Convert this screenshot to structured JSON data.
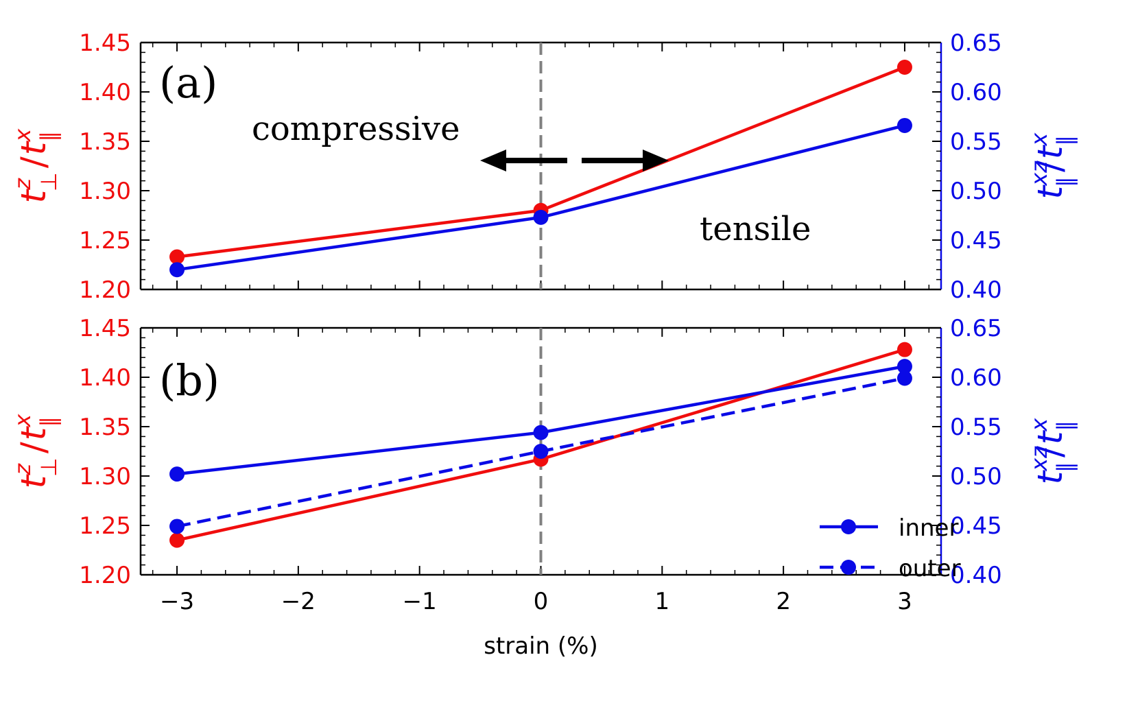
{
  "colors": {
    "left_axis": "#f00d0d",
    "right_axis": "#0a0ae6",
    "frame": "#000000",
    "zero_line": "#808080"
  },
  "xlabel": "strain (%)",
  "x_ticks": [
    "−3",
    "−2",
    "−1",
    "0",
    "1",
    "2",
    "3"
  ],
  "arrow_icons": {
    "left": "arrow-left-icon",
    "right": "arrow-right-icon"
  },
  "chart_data": [
    {
      "type": "line",
      "panel": "(a)",
      "x": [
        -3,
        0,
        3
      ],
      "xlim": [
        -3.3,
        3.3
      ],
      "ylim_left": [
        1.2,
        1.45
      ],
      "ylim_right": [
        0.4,
        0.65
      ],
      "left_ticks": [
        "1.20",
        "1.25",
        "1.30",
        "1.35",
        "1.40",
        "1.45"
      ],
      "right_ticks": [
        "0.40",
        "0.45",
        "0.50",
        "0.55",
        "0.60",
        "0.65"
      ],
      "ylabel_left": {
        "base": "t",
        "sup": "z",
        "sub": "⊥",
        "sep": "/",
        "base2": "t",
        "sup2": "x",
        "sub2": "∥"
      },
      "ylabel_right": {
        "base": "t",
        "sup": "xz",
        "sub": "∥",
        "sep": "/",
        "base2": "t",
        "sup2": "x",
        "sub2": "∥"
      },
      "annotations": [
        "compressive",
        "tensile"
      ],
      "series": [
        {
          "name": "t_perp^z / t_par^x",
          "axis": "left",
          "style": "solid",
          "values": [
            1.233,
            1.28,
            1.425
          ]
        },
        {
          "name": "t_par^xz / t_par^x",
          "axis": "right",
          "style": "solid",
          "values": [
            0.42,
            0.473,
            0.566
          ]
        }
      ]
    },
    {
      "type": "line",
      "panel": "(b)",
      "x": [
        -3,
        0,
        3
      ],
      "xlim": [
        -3.3,
        3.3
      ],
      "ylim_left": [
        1.2,
        1.45
      ],
      "ylim_right": [
        0.4,
        0.65
      ],
      "left_ticks": [
        "1.20",
        "1.25",
        "1.30",
        "1.35",
        "1.40",
        "1.45"
      ],
      "right_ticks": [
        "0.40",
        "0.45",
        "0.50",
        "0.55",
        "0.60",
        "0.65"
      ],
      "ylabel_left": {
        "base": "t",
        "sup": "z",
        "sub": "⊥",
        "sep": "/",
        "base2": "t",
        "sup2": "x",
        "sub2": "∥"
      },
      "ylabel_right": {
        "base": "t",
        "sup": "xz",
        "sub": "∥",
        "sep": "/",
        "base2": "t",
        "sup2": "x",
        "sub2": "∥"
      },
      "legend": {
        "position": "lower-right",
        "entries": [
          "inner",
          "outer"
        ]
      },
      "series": [
        {
          "name": "t_perp^z / t_par^x",
          "axis": "left",
          "style": "solid",
          "values": [
            1.235,
            1.317,
            1.428
          ]
        },
        {
          "name": "inner",
          "axis": "right",
          "style": "solid",
          "values": [
            0.502,
            0.544,
            0.611
          ]
        },
        {
          "name": "outer",
          "axis": "right",
          "style": "dashed",
          "values": [
            0.449,
            0.525,
            0.599
          ]
        }
      ]
    }
  ]
}
